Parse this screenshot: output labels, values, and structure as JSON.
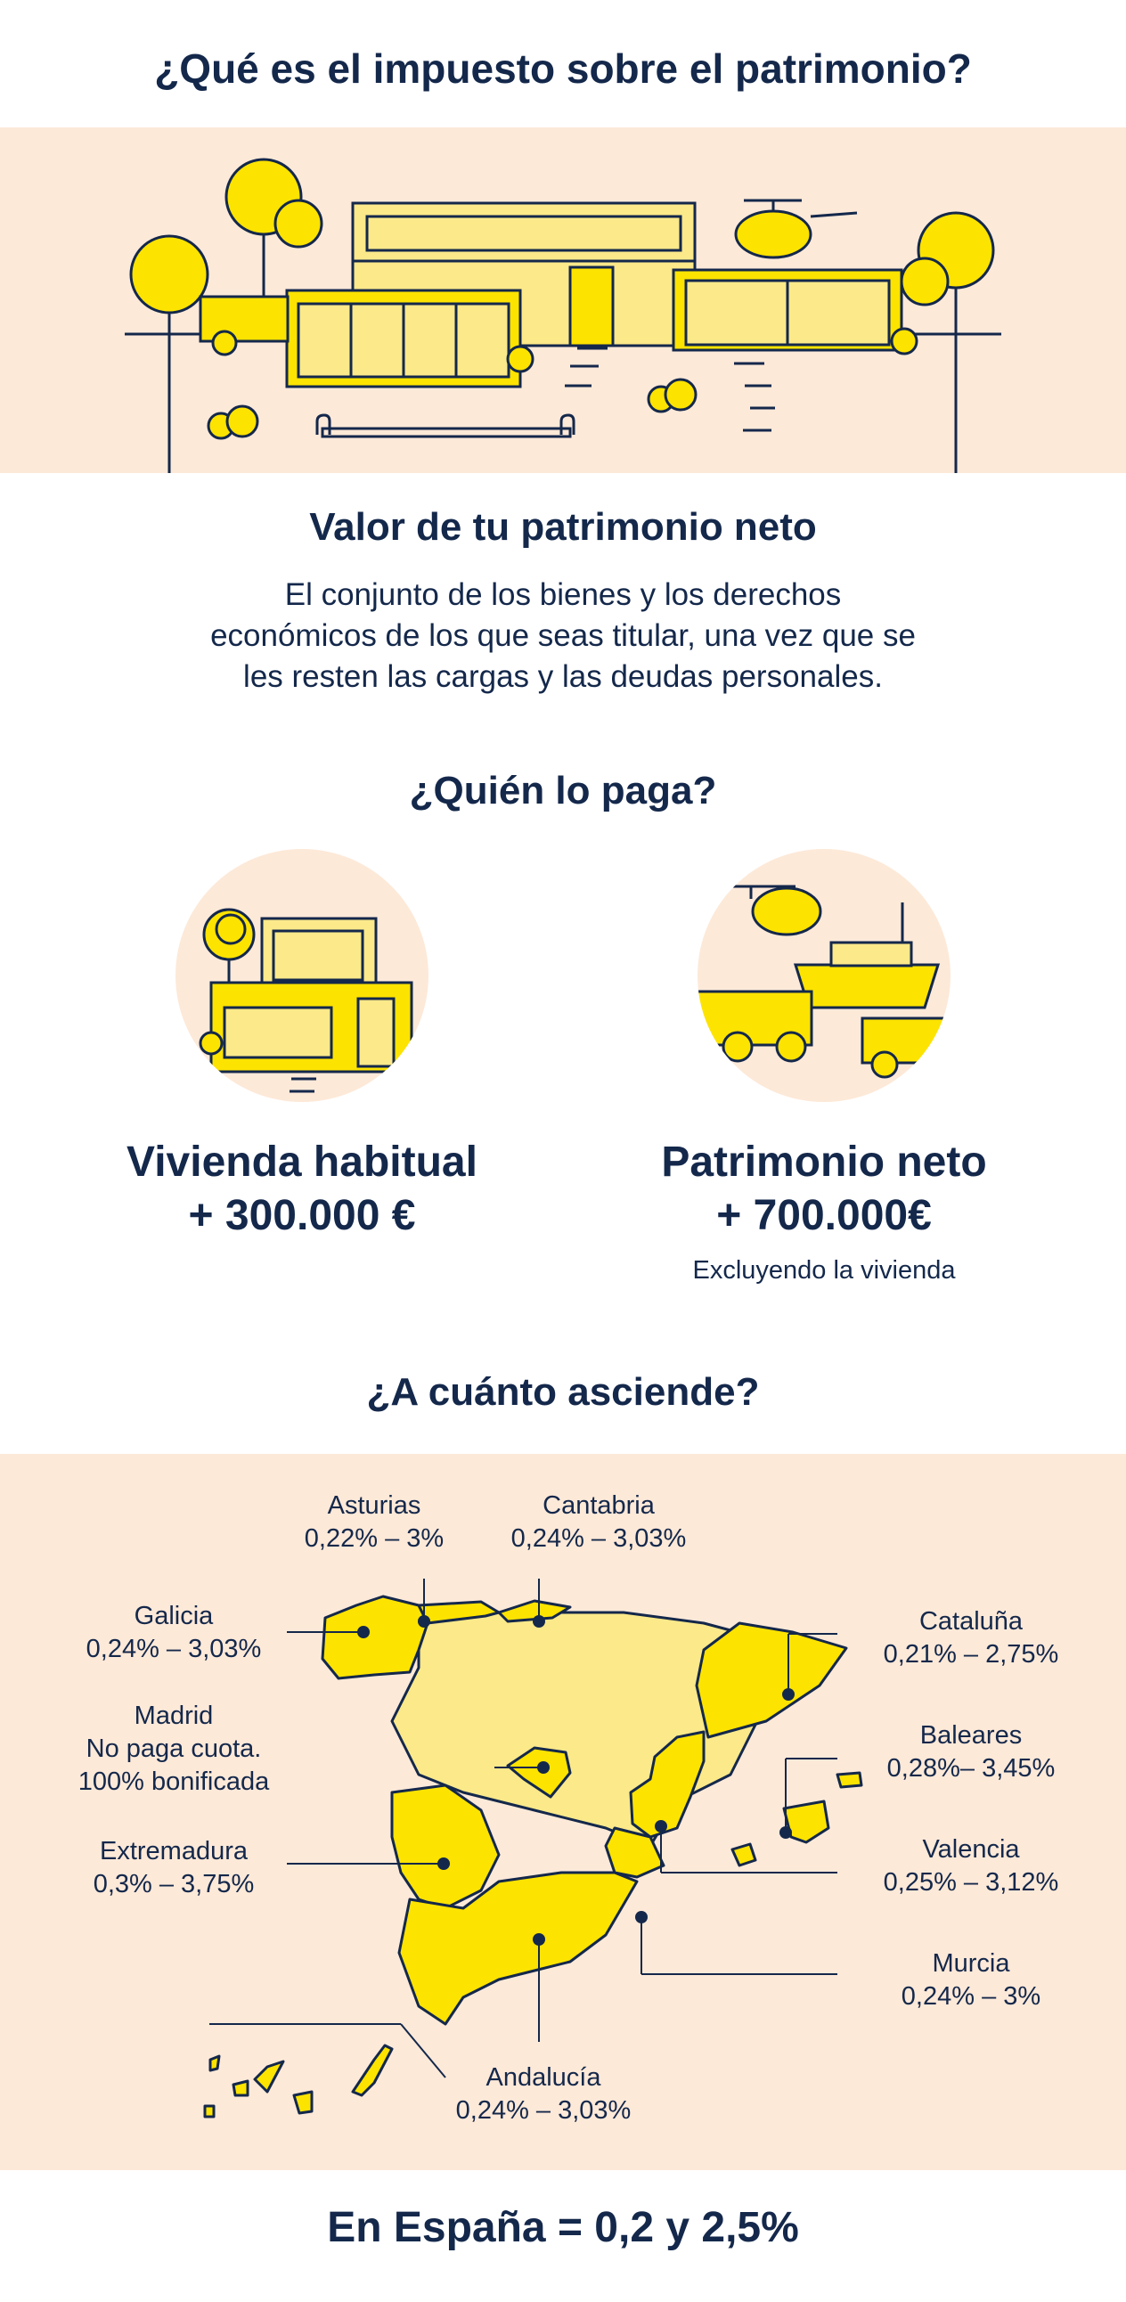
{
  "title": "¿Qué es el impuesto sobre el patrimonio?",
  "net_worth": {
    "heading": "Valor de tu patrimonio neto",
    "line1": "El conjunto de los bienes y los derechos",
    "line2": "económicos de los que seas titular, una vez que se",
    "line3": "les resten las cargas y las deudas personales."
  },
  "who_pays": {
    "heading": "¿Quién lo paga?",
    "left": {
      "line1": "Vivienda habitual",
      "line2": "+ 300.000 €"
    },
    "right": {
      "line1": "Patrimonio neto",
      "line2": "+ 700.000€",
      "note": "Excluyendo la vivienda"
    }
  },
  "amount": {
    "heading": "¿A cuánto asciende?",
    "regions": [
      {
        "name": "Asturias",
        "rate": "0,22% – 3%"
      },
      {
        "name": "Cantabria",
        "rate": "0,24% – 3,03%"
      },
      {
        "name": "Galicia",
        "rate": "0,24% – 3,03%"
      },
      {
        "name": "Cataluña",
        "rate": "0,21% – 2,75%"
      },
      {
        "name": "Madrid",
        "rate": "No paga cuota.",
        "rate2": "100% bonificada"
      },
      {
        "name": "Baleares",
        "rate": "0,28%– 3,45%"
      },
      {
        "name": "Extremadura",
        "rate": "0,3% – 3,75%"
      },
      {
        "name": "Valencia",
        "rate": "0,25% – 3,12%"
      },
      {
        "name": "Murcia",
        "rate": "0,24% – 3%"
      },
      {
        "name": "Andalucía",
        "rate": "0,24% – 3,03%"
      }
    ]
  },
  "footer": "En España = 0,2 y 2,5%",
  "colors": {
    "navy": "#14284b",
    "yellow": "#fde300",
    "light_yellow": "#fbe98a",
    "peach": "#fde9d8"
  }
}
